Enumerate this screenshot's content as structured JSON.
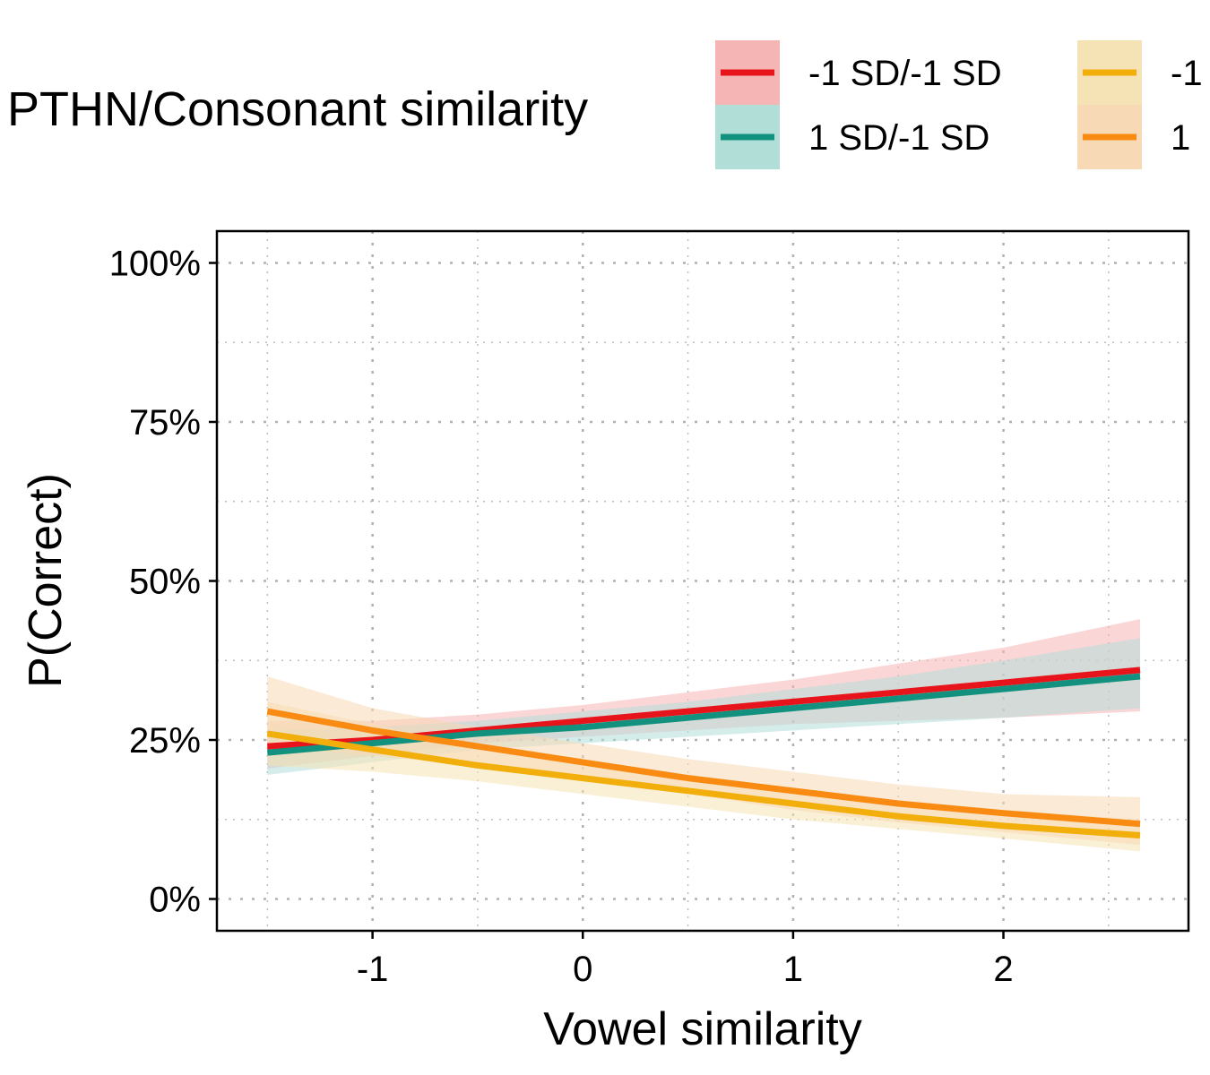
{
  "legend": {
    "title": "PTHN/Consonant similarity",
    "entries": [
      {
        "label": "-1 SD/-1 SD",
        "line_color": "#E8141B",
        "band_color": "#F6B5B5"
      },
      {
        "label": "1 SD/-1 SD",
        "line_color": "#12927E",
        "band_color": "#B2DED8"
      },
      {
        "label": "-1",
        "line_color": "#F2AE0A",
        "band_color": "#F5E3B5"
      },
      {
        "label": "1",
        "line_color": "#F98A12",
        "band_color": "#F8D9B5"
      }
    ]
  },
  "chart_data": {
    "type": "line",
    "title": "",
    "xlabel": "Vowel similarity",
    "ylabel": "P(Correct)",
    "xlim": [
      -1.74,
      2.88
    ],
    "ylim": [
      -0.05,
      1.05
    ],
    "x_ticks": [
      -1,
      0,
      1,
      2
    ],
    "x_tick_labels": [
      "-1",
      "0",
      "1",
      "2"
    ],
    "y_ticks": [
      0,
      0.25,
      0.5,
      0.75,
      1.0
    ],
    "y_tick_labels": [
      "0%",
      "25%",
      "50%",
      "75%",
      "100%"
    ],
    "grid": true,
    "grid_style": "dotted",
    "legend_position": "top",
    "series": [
      {
        "name": "-1 SD/-1 SD",
        "color": "#E8141B",
        "band_color": "#F6B5B5",
        "x": [
          -1.5,
          -1.0,
          -0.5,
          0.0,
          0.5,
          1.0,
          1.5,
          2.0,
          2.65
        ],
        "y": [
          0.24,
          0.25,
          0.265,
          0.28,
          0.295,
          0.31,
          0.325,
          0.34,
          0.36
        ],
        "lower": [
          0.205,
          0.225,
          0.245,
          0.255,
          0.265,
          0.275,
          0.28,
          0.285,
          0.295
        ],
        "upper": [
          0.28,
          0.28,
          0.29,
          0.305,
          0.325,
          0.345,
          0.37,
          0.395,
          0.44
        ]
      },
      {
        "name": "1 SD/-1 SD",
        "color": "#12927E",
        "band_color": "#B2DED8",
        "x": [
          -1.5,
          -1.0,
          -0.5,
          0.0,
          0.5,
          1.0,
          1.5,
          2.0,
          2.65
        ],
        "y": [
          0.23,
          0.245,
          0.26,
          0.27,
          0.285,
          0.3,
          0.315,
          0.33,
          0.35
        ],
        "lower": [
          0.195,
          0.215,
          0.235,
          0.245,
          0.255,
          0.265,
          0.275,
          0.285,
          0.3
        ],
        "upper": [
          0.265,
          0.27,
          0.28,
          0.295,
          0.31,
          0.33,
          0.35,
          0.375,
          0.41
        ]
      },
      {
        "name": "-1",
        "color": "#F2AE0A",
        "band_color": "#F5E3B5",
        "x": [
          -1.5,
          -1.0,
          -0.5,
          0.0,
          0.5,
          1.0,
          1.5,
          2.0,
          2.65
        ],
        "y": [
          0.26,
          0.235,
          0.21,
          0.19,
          0.17,
          0.15,
          0.13,
          0.115,
          0.1
        ],
        "lower": [
          0.21,
          0.2,
          0.185,
          0.165,
          0.145,
          0.125,
          0.11,
          0.095,
          0.075
        ],
        "upper": [
          0.31,
          0.275,
          0.24,
          0.215,
          0.195,
          0.175,
          0.155,
          0.14,
          0.125
        ]
      },
      {
        "name": "1",
        "color": "#F98A12",
        "band_color": "#F8D9B5",
        "x": [
          -1.5,
          -1.0,
          -0.5,
          0.0,
          0.5,
          1.0,
          1.5,
          2.0,
          2.65
        ],
        "y": [
          0.295,
          0.265,
          0.24,
          0.215,
          0.19,
          0.17,
          0.15,
          0.135,
          0.118
        ],
        "lower": [
          0.24,
          0.225,
          0.21,
          0.19,
          0.165,
          0.14,
          0.12,
          0.105,
          0.085
        ],
        "upper": [
          0.35,
          0.3,
          0.27,
          0.245,
          0.22,
          0.2,
          0.18,
          0.165,
          0.16
        ]
      }
    ]
  }
}
